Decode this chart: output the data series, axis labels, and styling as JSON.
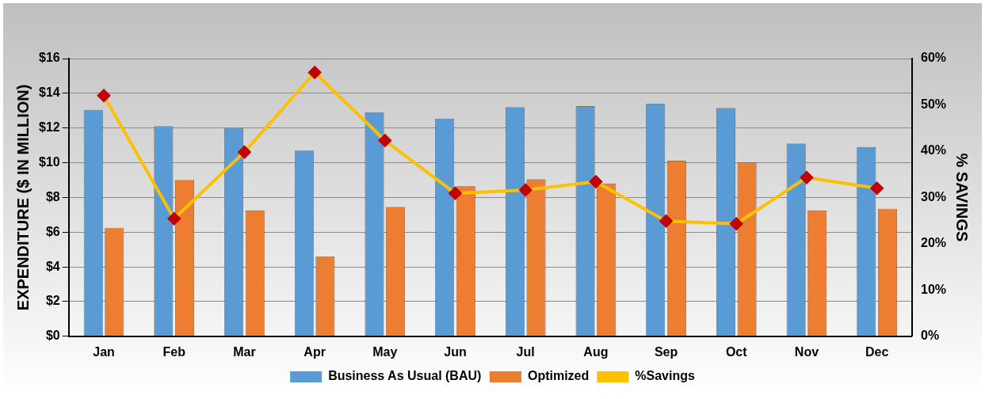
{
  "chart_data": {
    "type": "bar",
    "categories": [
      "Jan",
      "Feb",
      "Mar",
      "Apr",
      "May",
      "Jun",
      "Jul",
      "Aug",
      "Sep",
      "Oct",
      "Nov",
      "Dec"
    ],
    "ylabel": "EXPENDITURE ($ IN MILLION)",
    "y2label": "% SAVINGS",
    "ylim": [
      0,
      16
    ],
    "yticks": [
      {
        "value": 0,
        "label": "$0"
      },
      {
        "value": 2,
        "label": "$2"
      },
      {
        "value": 4,
        "label": "$4"
      },
      {
        "value": 6,
        "label": "$6"
      },
      {
        "value": 8,
        "label": "$8"
      },
      {
        "value": 10,
        "label": "$10"
      },
      {
        "value": 12,
        "label": "$12"
      },
      {
        "value": 14,
        "label": "$14"
      },
      {
        "value": 16,
        "label": "$16"
      }
    ],
    "y2lim": [
      0,
      60
    ],
    "y2ticks": [
      {
        "value": 0,
        "label": "0%"
      },
      {
        "value": 10,
        "label": "10%"
      },
      {
        "value": 20,
        "label": "20%"
      },
      {
        "value": 30,
        "label": "30%"
      },
      {
        "value": 40,
        "label": "40%"
      },
      {
        "value": 50,
        "label": "50%"
      },
      {
        "value": 60,
        "label": "60%"
      }
    ],
    "series": [
      {
        "name": "Business As Usual (BAU)",
        "color": "#5b9bd5",
        "values": [
          13.05,
          12.1,
          12.0,
          10.7,
          12.9,
          12.55,
          13.2,
          13.25,
          13.4,
          13.15,
          11.1,
          10.9
        ]
      },
      {
        "name": "Optimized",
        "color": "#ed7d31",
        "values": [
          6.25,
          9.0,
          7.25,
          4.6,
          7.45,
          8.65,
          9.05,
          8.8,
          10.1,
          10.0,
          7.25,
          7.35
        ]
      },
      {
        "name": "%Savings",
        "type": "line",
        "axis": "y2",
        "color": "#ffc000",
        "marker": "diamond",
        "values": [
          52,
          25.4,
          39.8,
          57,
          42.3,
          30.9,
          31.6,
          33.4,
          24.9,
          24.3,
          34.3,
          32
        ]
      }
    ],
    "grid": "y",
    "legend": "bottom"
  }
}
